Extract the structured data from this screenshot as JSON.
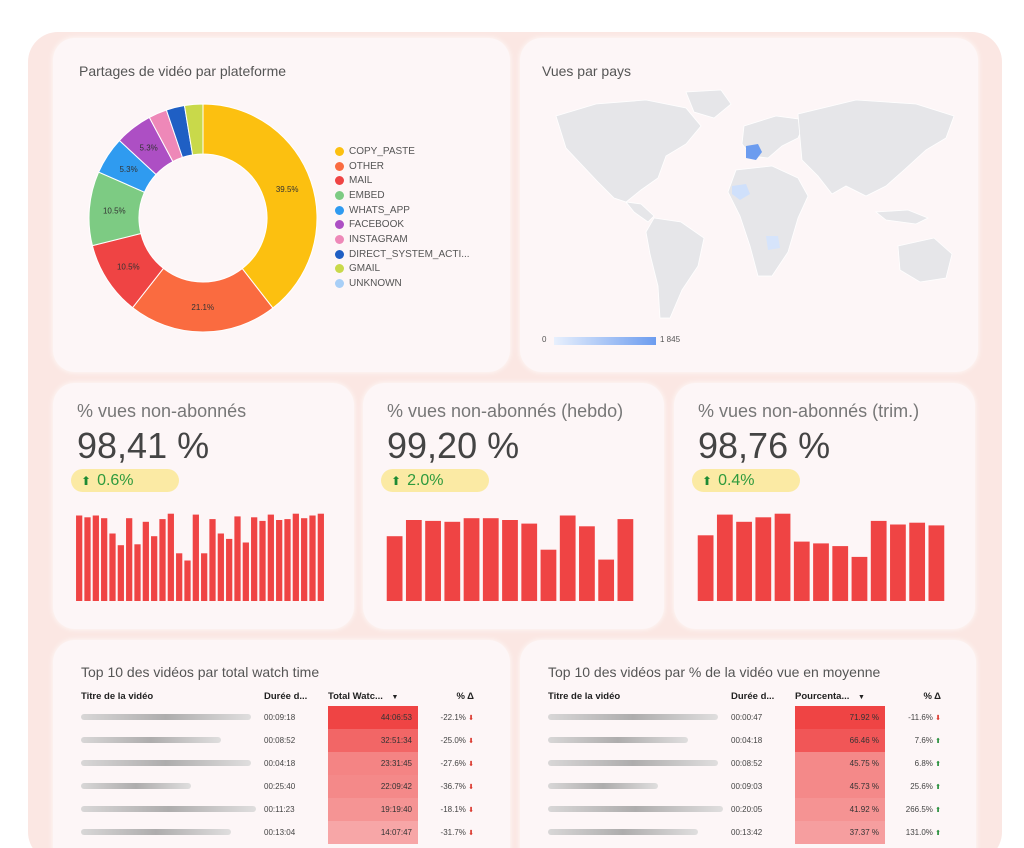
{
  "donut_card": {
    "title": "Partages de vidéo par plateforme",
    "slices": [
      {
        "name": "COPY_PASTE",
        "value": 39.5,
        "label": "39.5%",
        "color": "#fcc010"
      },
      {
        "name": "OTHER",
        "value": 21.1,
        "label": "21.1%",
        "color": "#fa6b40"
      },
      {
        "name": "MAIL",
        "value": 10.5,
        "label": "10.5%",
        "color": "#ef4444"
      },
      {
        "name": "EMBED",
        "value": 10.5,
        "label": "10.5%",
        "color": "#7dcb83"
      },
      {
        "name": "WHATS_APP",
        "value": 5.3,
        "label": "5.3%",
        "color": "#2f9bf0"
      },
      {
        "name": "FACEBOOK",
        "value": 5.3,
        "label": "5.3%",
        "color": "#ad4fc4"
      },
      {
        "name": "INSTAGRAM",
        "value": 2.6,
        "label": "",
        "color": "#ee88b8"
      },
      {
        "name": "DIRECT_SYSTEM_ACTI...",
        "value": 2.6,
        "label": "",
        "color": "#1f5fc4"
      },
      {
        "name": "GMAIL",
        "value": 2.6,
        "label": "",
        "color": "#c9d94a"
      },
      {
        "name": "UNKNOWN",
        "value": 0,
        "label": "",
        "color": "#a8cff7"
      }
    ]
  },
  "map_card": {
    "title": "Vues par pays",
    "scale_min": "0",
    "scale_max": "1 845",
    "highlight_color": "#6c9cef"
  },
  "kpis": [
    {
      "title": "% vues non-abonnés",
      "value": "98,41 %",
      "delta": "0.6%",
      "bars": [
        95,
        93,
        95,
        92,
        75,
        62,
        92,
        63,
        88,
        72,
        91,
        97,
        53,
        45,
        96,
        53,
        91,
        75,
        69,
        94,
        65,
        93,
        89,
        96,
        90,
        91,
        97,
        92,
        95,
        97
      ]
    },
    {
      "title": "% vues non-abonnés (hebdo)",
      "value": "99,20 %",
      "delta": "2.0%",
      "bars": [
        72,
        90,
        89,
        88,
        92,
        92,
        90,
        86,
        57,
        95,
        83,
        46,
        91
      ]
    },
    {
      "title": "% vues non-abonnés (trim.)",
      "value": "98,76 %",
      "delta": "0.4%",
      "bars": [
        73,
        96,
        88,
        93,
        97,
        66,
        64,
        61,
        49,
        89,
        85,
        87,
        84
      ]
    }
  ],
  "chart_data": [
    {
      "type": "pie",
      "title": "Partages de vidéo par plateforme",
      "categories": [
        "COPY_PASTE",
        "OTHER",
        "MAIL",
        "EMBED",
        "WHATS_APP",
        "FACEBOOK",
        "INSTAGRAM",
        "DIRECT_SYSTEM_ACTI...",
        "GMAIL",
        "UNKNOWN"
      ],
      "values": [
        39.5,
        21.1,
        10.5,
        10.5,
        5.3,
        5.3,
        2.6,
        2.6,
        2.6,
        0
      ],
      "legend": "right"
    },
    {
      "type": "bar",
      "title": "% vues non-abonnés",
      "values": [
        95,
        93,
        95,
        92,
        75,
        62,
        92,
        63,
        88,
        72,
        91,
        97,
        53,
        45,
        96,
        53,
        91,
        75,
        69,
        94,
        65,
        93,
        89,
        96,
        90,
        91,
        97,
        92,
        95,
        97
      ]
    },
    {
      "type": "bar",
      "title": "% vues non-abonnés (hebdo)",
      "values": [
        72,
        90,
        89,
        88,
        92,
        92,
        90,
        86,
        57,
        95,
        83,
        46,
        91
      ]
    },
    {
      "type": "bar",
      "title": "% vues non-abonnés (trim.)",
      "values": [
        73,
        96,
        88,
        93,
        97,
        66,
        64,
        61,
        49,
        89,
        85,
        87,
        84
      ]
    }
  ],
  "table1": {
    "title": "Top 10 des vidéos par total watch time",
    "headers": [
      "Titre de la vidéo",
      "Durée d...",
      "Total Watc...",
      "% Δ"
    ],
    "sort_icon": "▼",
    "rows": [
      {
        "duration": "00:09:18",
        "total": "44:06:53",
        "pct": "-22.1%",
        "dir": "down",
        "heat": 1.0
      },
      {
        "duration": "00:08:52",
        "total": "32:51:34",
        "pct": "-25.0%",
        "dir": "down",
        "heat": 0.78
      },
      {
        "duration": "00:04:18",
        "total": "23:31:45",
        "pct": "-27.6%",
        "dir": "down",
        "heat": 0.58
      },
      {
        "duration": "00:25:40",
        "total": "22:09:42",
        "pct": "-36.7%",
        "dir": "down",
        "heat": 0.55
      },
      {
        "duration": "00:11:23",
        "total": "19:19:40",
        "pct": "-18.1%",
        "dir": "down",
        "heat": 0.47
      },
      {
        "duration": "00:13:04",
        "total": "14:07:47",
        "pct": "-31.7%",
        "dir": "down",
        "heat": 0.35
      }
    ]
  },
  "table2": {
    "title": "Top 10 des vidéos par % de la vidéo vue en moyenne",
    "headers": [
      "Titre de la vidéo",
      "Durée d...",
      "Pourcenta...",
      "% Δ"
    ],
    "sort_icon": "▼",
    "rows": [
      {
        "duration": "00:00:47",
        "total": "71.92 %",
        "pct": "-11.6%",
        "dir": "down",
        "heat": 1.0
      },
      {
        "duration": "00:04:18",
        "total": "66.46 %",
        "pct": "7.6%",
        "dir": "up",
        "heat": 0.88
      },
      {
        "duration": "00:08:52",
        "total": "45.75 %",
        "pct": "6.8%",
        "dir": "up",
        "heat": 0.55
      },
      {
        "duration": "00:09:03",
        "total": "45.73 %",
        "pct": "25.6%",
        "dir": "up",
        "heat": 0.55
      },
      {
        "duration": "00:20:05",
        "total": "41.92 %",
        "pct": "266.5%",
        "dir": "up",
        "heat": 0.48
      },
      {
        "duration": "00:13:42",
        "total": "37.37 %",
        "pct": "131.0%",
        "dir": "up",
        "heat": 0.4
      }
    ]
  },
  "colors": {
    "bar": "#ef4444",
    "heat": "#ef4444",
    "up": "#1d8a33",
    "down": "#d93025"
  }
}
